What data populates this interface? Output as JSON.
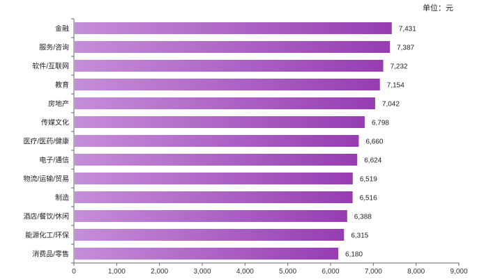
{
  "unit_label": "单位：元",
  "chart_data": {
    "type": "bar",
    "orientation": "horizontal",
    "categories": [
      "金融",
      "服务/咨询",
      "软件/互联网",
      "教育",
      "房地产",
      "传媒文化",
      "医疗/医药/健康",
      "电子/通信",
      "物流/运输/贸易",
      "制造",
      "酒店/餐饮/休闲",
      "能源化工/环保",
      "消费品/零售"
    ],
    "values": [
      7431,
      7387,
      7232,
      7154,
      7042,
      6798,
      6660,
      6624,
      6519,
      6516,
      6388,
      6315,
      6180
    ],
    "xlim": [
      0,
      9000
    ],
    "xticks": [
      0,
      1000,
      2000,
      3000,
      4000,
      5000,
      6000,
      7000,
      8000,
      9000
    ],
    "grid": false,
    "data_labels": true,
    "colors": {
      "bar_start": "#c68ed9",
      "bar_end": "#963db2"
    }
  }
}
